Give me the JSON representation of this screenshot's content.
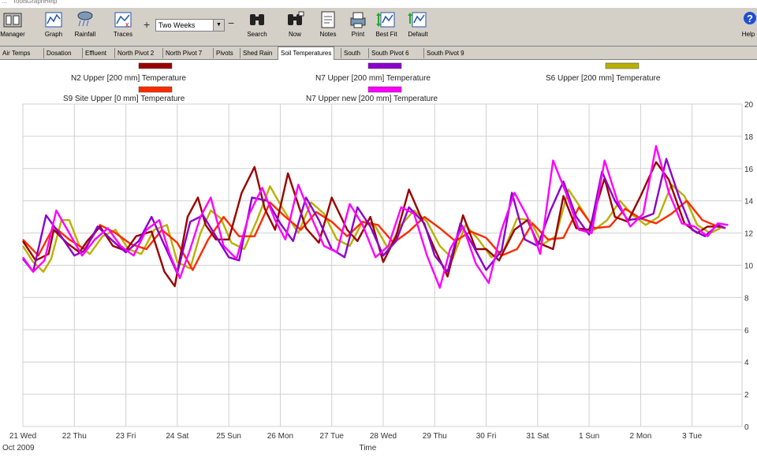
{
  "menubar": {
    "items": [
      "...",
      "Tools",
      "Graph",
      "Help"
    ]
  },
  "toolbar": {
    "buttons": [
      {
        "label": "Manager",
        "icon": "manager-icon"
      },
      {
        "label": "Graph",
        "icon": "graph-icon"
      },
      {
        "label": "Rainfall",
        "icon": "rainfall-icon"
      },
      {
        "label": "Traces",
        "icon": "traces-icon"
      },
      {
        "label": "Search",
        "icon": "binoculars-icon"
      },
      {
        "label": "Now",
        "icon": "binoculars-now-icon"
      },
      {
        "label": "Notes",
        "icon": "notes-icon"
      },
      {
        "label": "Print",
        "icon": "print-icon"
      },
      {
        "label": "Best Fit",
        "icon": "best-fit-icon"
      },
      {
        "label": "Default",
        "icon": "default-icon"
      },
      {
        "label": "Help",
        "icon": "help-icon"
      }
    ],
    "zoom_in_symbol": "+",
    "zoom_out_symbol": "−",
    "period_value": "Two Weeks"
  },
  "tabs": [
    {
      "label": "Air Temps",
      "active": false
    },
    {
      "label": "Dosation",
      "active": false
    },
    {
      "label": "Effluent",
      "active": false
    },
    {
      "label": "North Pivot 2",
      "active": false
    },
    {
      "label": "North Pivot 7",
      "active": false
    },
    {
      "label": "Pivots",
      "active": false
    },
    {
      "label": "Shed Rain",
      "active": false
    },
    {
      "label": "Soil Temperatures",
      "active": true
    },
    {
      "label": "South",
      "active": false
    },
    {
      "label": "South Pivot 6",
      "active": false
    },
    {
      "label": "South Pivot 9",
      "active": false
    }
  ],
  "chart_data": {
    "type": "line",
    "xlabel": "Time",
    "x_date_label": "Oct 2009",
    "x_ticks": [
      "21 Wed",
      "22 Thu",
      "23 Fri",
      "24 Sat",
      "25 Sun",
      "26 Mon",
      "27 Tue",
      "28 Wed",
      "29 Thu",
      "30 Fri",
      "31 Sat",
      "1 Sun",
      "2 Mon",
      "3 Tue"
    ],
    "ylim": [
      0,
      20
    ],
    "y_ticks": [
      0,
      2,
      4,
      6,
      8,
      10,
      12,
      14,
      16,
      18,
      20
    ],
    "grid": true,
    "series": [
      {
        "name": "N2 Upper  [200 mm] Temperature",
        "color": "#990000",
        "x": [
          0,
          0.25,
          0.5,
          0.6,
          0.85,
          1.1,
          1.25,
          1.5,
          1.75,
          2.0,
          2.2,
          2.5,
          2.75,
          2.95,
          3.2,
          3.4,
          3.55,
          3.75,
          4.0,
          4.25,
          4.5,
          4.7,
          4.9,
          5.15,
          5.5,
          5.75,
          6.0,
          6.3,
          6.5,
          6.75,
          7.0,
          7.25,
          7.5,
          7.8,
          8.0,
          8.25,
          8.55,
          8.8,
          9.0,
          9.25,
          9.55,
          9.8,
          10.0,
          10.3,
          10.5,
          10.75,
          11.0,
          11.3,
          11.5,
          11.75,
          12.0,
          12.3,
          12.55,
          12.85,
          13.1,
          13.3,
          13.55
        ],
        "y": [
          11.5,
          10.3,
          10.7,
          12.2,
          11.4,
          10.8,
          11.5,
          12.4,
          11.2,
          10.9,
          11.8,
          12.1,
          9.6,
          8.7,
          13.0,
          14.2,
          12.5,
          11.6,
          11.6,
          14.5,
          16.1,
          13.5,
          12.2,
          15.7,
          12.3,
          11.4,
          14.2,
          12.2,
          11.5,
          13.0,
          10.2,
          11.8,
          14.7,
          12.5,
          11.0,
          9.3,
          13.1,
          11.0,
          11.0,
          10.3,
          12.2,
          12.8,
          11.4,
          11.0,
          14.3,
          12.3,
          12.2,
          15.4,
          13.0,
          12.7,
          14.3,
          16.4,
          15.3,
          12.6,
          12.0,
          12.4,
          12.4
        ]
      },
      {
        "name": "N7 Upper  [200 mm] Temperature",
        "color": "#8b00cc",
        "x": [
          0,
          0.2,
          0.45,
          0.7,
          1.0,
          1.2,
          1.45,
          1.75,
          2.0,
          2.25,
          2.5,
          2.8,
          3.0,
          3.25,
          3.5,
          3.75,
          4.0,
          4.2,
          4.45,
          4.75,
          5.0,
          5.25,
          5.5,
          5.75,
          6.0,
          6.25,
          6.5,
          6.75,
          7.0,
          7.25,
          7.5,
          7.8,
          8.0,
          8.25,
          8.5,
          8.75,
          9.0,
          9.3,
          9.5,
          9.75,
          10.0,
          10.25,
          10.5,
          10.75,
          11.0,
          11.25,
          11.5,
          11.75,
          12.0,
          12.25,
          12.5,
          12.75,
          13.0,
          13.25,
          13.5,
          13.65
        ],
        "y": [
          10.4,
          9.6,
          13.1,
          12.0,
          10.6,
          10.9,
          12.4,
          11.5,
          10.8,
          11.5,
          13.0,
          10.9,
          9.5,
          12.7,
          13.1,
          11.8,
          10.5,
          10.3,
          14.2,
          14.0,
          12.6,
          11.5,
          14.2,
          12.8,
          11.0,
          10.5,
          13.6,
          12.4,
          10.6,
          11.5,
          13.6,
          12.6,
          10.6,
          9.6,
          12.6,
          11.2,
          9.7,
          10.9,
          14.5,
          11.6,
          11.2,
          13.4,
          15.2,
          13.0,
          11.9,
          15.8,
          14.0,
          12.8,
          12.9,
          13.2,
          16.6,
          14.2,
          12.2,
          11.8,
          12.5,
          12.3
        ]
      },
      {
        "name": "S6 Upper  [200 mm] Temperature",
        "color": "#b8b000",
        "x": [
          0,
          0.2,
          0.4,
          0.55,
          0.75,
          0.9,
          1.1,
          1.3,
          1.55,
          1.8,
          2.05,
          2.3,
          2.55,
          2.8,
          3.0,
          3.25,
          3.45,
          3.65,
          3.85,
          4.05,
          4.3,
          4.55,
          4.8,
          5.05,
          5.35,
          5.6,
          5.85,
          6.1,
          6.35,
          6.6,
          6.85,
          7.1,
          7.35,
          7.6,
          7.85,
          8.1,
          8.35,
          8.6,
          8.85,
          9.1,
          9.35,
          9.6,
          9.85,
          10.1,
          10.35,
          10.6,
          10.85,
          11.1,
          11.35,
          11.6,
          11.85,
          12.1,
          12.35,
          12.6,
          12.85,
          13.1,
          13.35,
          13.55
        ],
        "y": [
          11.2,
          10.2,
          9.6,
          10.4,
          12.8,
          12.8,
          11.2,
          10.7,
          11.8,
          12.2,
          11.0,
          10.7,
          12.2,
          12.5,
          10.2,
          9.8,
          12.0,
          13.4,
          12.9,
          11.4,
          11.0,
          12.8,
          14.9,
          13.5,
          12.0,
          13.9,
          13.2,
          11.6,
          11.2,
          12.7,
          12.4,
          11.0,
          12.5,
          13.4,
          12.7,
          11.2,
          10.4,
          12.5,
          11.6,
          10.5,
          11.0,
          12.9,
          12.8,
          11.3,
          11.8,
          14.7,
          13.5,
          12.2,
          12.8,
          14.0,
          13.1,
          12.5,
          13.0,
          15.0,
          14.3,
          12.5,
          12.0,
          12.3
        ]
      },
      {
        "name": "S9 Site Upper  [0 mm] Temperature",
        "color": "#ff2a00",
        "x": [
          0,
          0.3,
          0.6,
          0.9,
          1.2,
          1.5,
          1.8,
          2.1,
          2.4,
          2.7,
          3.0,
          3.3,
          3.6,
          3.9,
          4.2,
          4.5,
          4.8,
          5.1,
          5.4,
          5.7,
          6.0,
          6.3,
          6.6,
          6.9,
          7.2,
          7.5,
          7.8,
          8.1,
          8.4,
          8.7,
          9.0,
          9.3,
          9.6,
          9.9,
          10.2,
          10.5,
          10.8,
          11.1,
          11.4,
          11.7,
          12.0,
          12.3,
          12.6,
          12.9,
          13.2,
          13.5,
          13.65
        ],
        "y": [
          11.6,
          10.6,
          12.4,
          11.6,
          11.0,
          12.5,
          12.0,
          11.3,
          11.0,
          12.2,
          11.4,
          9.7,
          11.6,
          13.0,
          11.8,
          11.8,
          13.9,
          13.0,
          12.2,
          13.3,
          12.7,
          11.8,
          12.7,
          12.5,
          11.4,
          12.1,
          13.0,
          12.3,
          11.5,
          12.1,
          11.7,
          10.6,
          11.0,
          12.6,
          11.6,
          11.7,
          13.6,
          12.3,
          12.4,
          13.5,
          12.9,
          12.6,
          13.2,
          14.0,
          12.8,
          12.4,
          12.3
        ]
      },
      {
        "name": "N7 Upper new  [200 mm] Temperature",
        "color": "#ff00ff",
        "x": [
          0,
          0.2,
          0.42,
          0.65,
          0.9,
          1.15,
          1.4,
          1.65,
          1.9,
          2.15,
          2.4,
          2.65,
          2.85,
          3.05,
          3.25,
          3.45,
          3.65,
          3.9,
          4.15,
          4.4,
          4.65,
          4.9,
          5.1,
          5.35,
          5.6,
          5.85,
          6.1,
          6.35,
          6.6,
          6.85,
          7.1,
          7.35,
          7.6,
          7.85,
          8.1,
          8.3,
          8.55,
          8.8,
          9.05,
          9.3,
          9.55,
          9.8,
          10.05,
          10.3,
          10.55,
          10.8,
          11.05,
          11.3,
          11.55,
          11.8,
          12.05,
          12.3,
          12.55,
          12.8,
          13.05,
          13.3,
          13.5,
          13.7
        ],
        "y": [
          10.5,
          9.6,
          10.3,
          13.4,
          12.0,
          10.6,
          11.6,
          12.3,
          11.2,
          10.6,
          12.2,
          12.8,
          10.7,
          9.2,
          11.0,
          13.0,
          14.2,
          11.2,
          10.4,
          13.2,
          14.8,
          12.8,
          11.6,
          15.0,
          13.0,
          11.2,
          10.8,
          13.8,
          12.5,
          10.5,
          11.2,
          13.6,
          13.2,
          10.6,
          8.6,
          11.0,
          12.4,
          10.1,
          8.9,
          12.2,
          14.5,
          13.0,
          10.7,
          16.5,
          14.5,
          12.2,
          12.0,
          16.5,
          14.0,
          12.4,
          13.2,
          17.4,
          14.5,
          12.6,
          12.4,
          11.8,
          12.6,
          12.5
        ]
      }
    ]
  }
}
